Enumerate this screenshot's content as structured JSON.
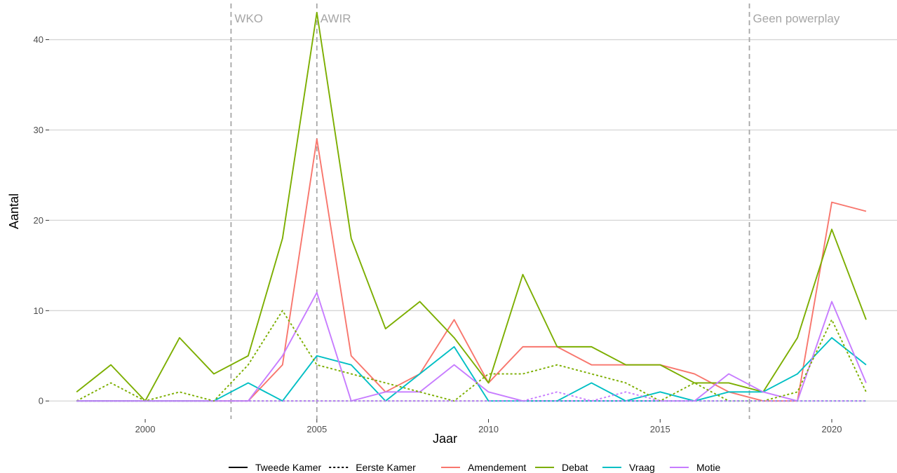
{
  "chart_data": {
    "type": "line",
    "title": "",
    "xlabel": "Jaar",
    "ylabel": "Aantal",
    "xlim": [
      1997.2,
      2021.9
    ],
    "ylim": [
      -2,
      44
    ],
    "x_ticks": [
      2000,
      2005,
      2010,
      2015,
      2020
    ],
    "y_ticks": [
      0,
      10,
      20,
      30,
      40
    ],
    "grid": "horizontal major gridlines",
    "legend_placement": "bottom",
    "vlines": [
      {
        "x": 2002.5,
        "label": "WKO"
      },
      {
        "x": 2005.0,
        "label": "AWIR"
      },
      {
        "x": 2017.6,
        "label": "Geen powerplay"
      }
    ],
    "linetype_legend": [
      {
        "label": "Tweede Kamer",
        "dash": "solid"
      },
      {
        "label": "Eerste Kamer",
        "dash": "dotted"
      }
    ],
    "color_legend": [
      {
        "label": "Amendement",
        "color": "#F8766D"
      },
      {
        "label": "Debat",
        "color": "#7CAE00"
      },
      {
        "label": "Vraag",
        "color": "#00BFC4"
      },
      {
        "label": "Motie",
        "color": "#C77CFF"
      }
    ],
    "x": [
      1998,
      1999,
      2000,
      2001,
      2002,
      2003,
      2004,
      2005,
      2006,
      2007,
      2008,
      2009,
      2010,
      2011,
      2012,
      2013,
      2014,
      2015,
      2016,
      2017,
      2018,
      2019,
      2020,
      2021
    ],
    "series": [
      {
        "name": "Amendement",
        "chamber": "Tweede Kamer",
        "color": "#F8766D",
        "dash": "solid",
        "values": [
          0,
          0,
          0,
          0,
          0,
          0,
          4,
          29,
          5,
          1,
          3,
          9,
          2,
          6,
          6,
          4,
          4,
          4,
          3,
          1,
          0,
          0,
          22,
          21
        ]
      },
      {
        "name": "Debat",
        "chamber": "Tweede Kamer",
        "color": "#7CAE00",
        "dash": "solid",
        "values": [
          1,
          4,
          0,
          7,
          3,
          5,
          18,
          43,
          18,
          8,
          11,
          7,
          2,
          14,
          6,
          6,
          4,
          4,
          2,
          2,
          1,
          7,
          19,
          9
        ]
      },
      {
        "name": "Vraag",
        "chamber": "Tweede Kamer",
        "color": "#00BFC4",
        "dash": "solid",
        "values": [
          0,
          0,
          0,
          0,
          0,
          2,
          0,
          5,
          4,
          0,
          3,
          6,
          0,
          0,
          0,
          2,
          0,
          1,
          0,
          1,
          1,
          3,
          7,
          4
        ]
      },
      {
        "name": "Motie",
        "chamber": "Tweede Kamer",
        "color": "#C77CFF",
        "dash": "solid",
        "values": [
          0,
          0,
          0,
          0,
          0,
          0,
          5,
          12,
          0,
          1,
          1,
          4,
          1,
          0,
          0,
          0,
          0,
          0,
          0,
          3,
          1,
          0,
          11,
          2
        ]
      },
      {
        "name": "Amendement",
        "chamber": "Eerste Kamer",
        "color": "#F8766D",
        "dash": "dotted",
        "values": [
          0,
          0,
          0,
          0,
          0,
          0,
          0,
          0,
          0,
          0,
          0,
          0,
          0,
          0,
          0,
          0,
          0,
          0,
          0,
          0,
          0,
          0,
          0,
          0
        ]
      },
      {
        "name": "Debat",
        "chamber": "Eerste Kamer",
        "color": "#7CAE00",
        "dash": "dotted",
        "values": [
          0,
          2,
          0,
          1,
          0,
          4,
          10,
          4,
          3,
          2,
          1,
          0,
          3,
          3,
          4,
          3,
          2,
          0,
          2,
          0,
          0,
          1,
          9,
          1
        ]
      },
      {
        "name": "Vraag",
        "chamber": "Eerste Kamer",
        "color": "#00BFC4",
        "dash": "dotted",
        "values": [
          0,
          0,
          0,
          0,
          0,
          0,
          0,
          0,
          0,
          0,
          0,
          0,
          0,
          0,
          0,
          0,
          0,
          0,
          0,
          0,
          0,
          0,
          0,
          0
        ]
      },
      {
        "name": "Motie",
        "chamber": "Eerste Kamer",
        "color": "#C77CFF",
        "dash": "dotted",
        "values": [
          0,
          0,
          0,
          0,
          0,
          0,
          0,
          0,
          0,
          0,
          0,
          0,
          0,
          0,
          1,
          0,
          1,
          0,
          0,
          0,
          0,
          0,
          0,
          0
        ]
      }
    ]
  }
}
